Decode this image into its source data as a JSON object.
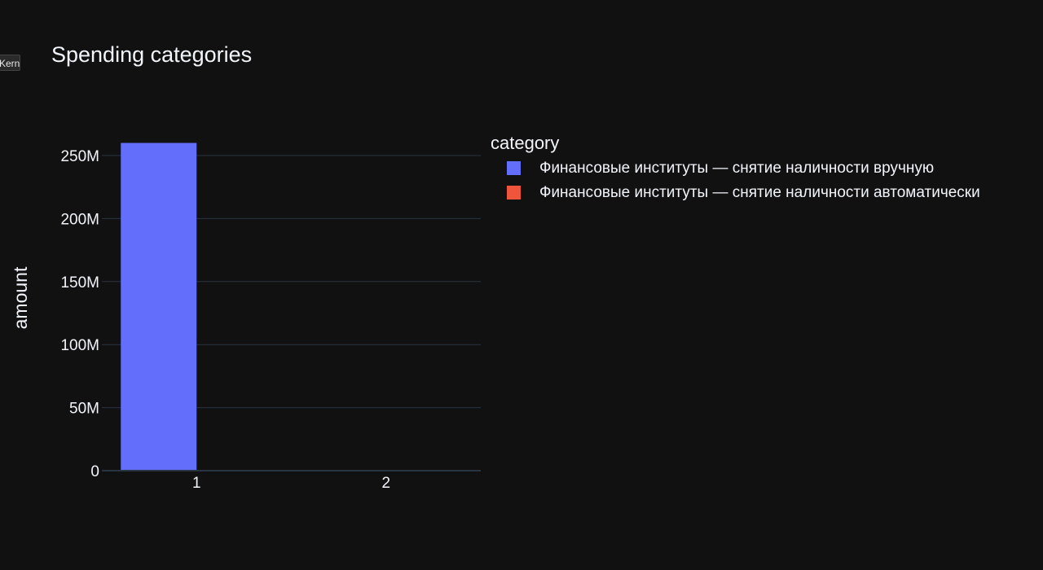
{
  "kernel_tag": "Kernel",
  "chart_data": {
    "type": "bar",
    "title": "Spending categories",
    "xlabel": "",
    "ylabel": "amount",
    "categories": [
      "1",
      "2"
    ],
    "ylim": [
      0,
      260000000
    ],
    "y_ticks": [
      {
        "value": 0,
        "label": "0"
      },
      {
        "value": 50000000,
        "label": "50M"
      },
      {
        "value": 100000000,
        "label": "100M"
      },
      {
        "value": 150000000,
        "label": "150M"
      },
      {
        "value": 200000000,
        "label": "200M"
      },
      {
        "value": 250000000,
        "label": "250M"
      }
    ],
    "grid": true,
    "legend_position": "right",
    "legend_title": "category",
    "series": [
      {
        "name": "Финансовые институты — снятие наличности вручную",
        "color": "#636efa",
        "values": [
          260000000,
          0
        ]
      },
      {
        "name": "Финансовые институты — снятие наличности автоматически",
        "color": "#ef553b",
        "values": [
          0,
          300000
        ]
      }
    ]
  }
}
